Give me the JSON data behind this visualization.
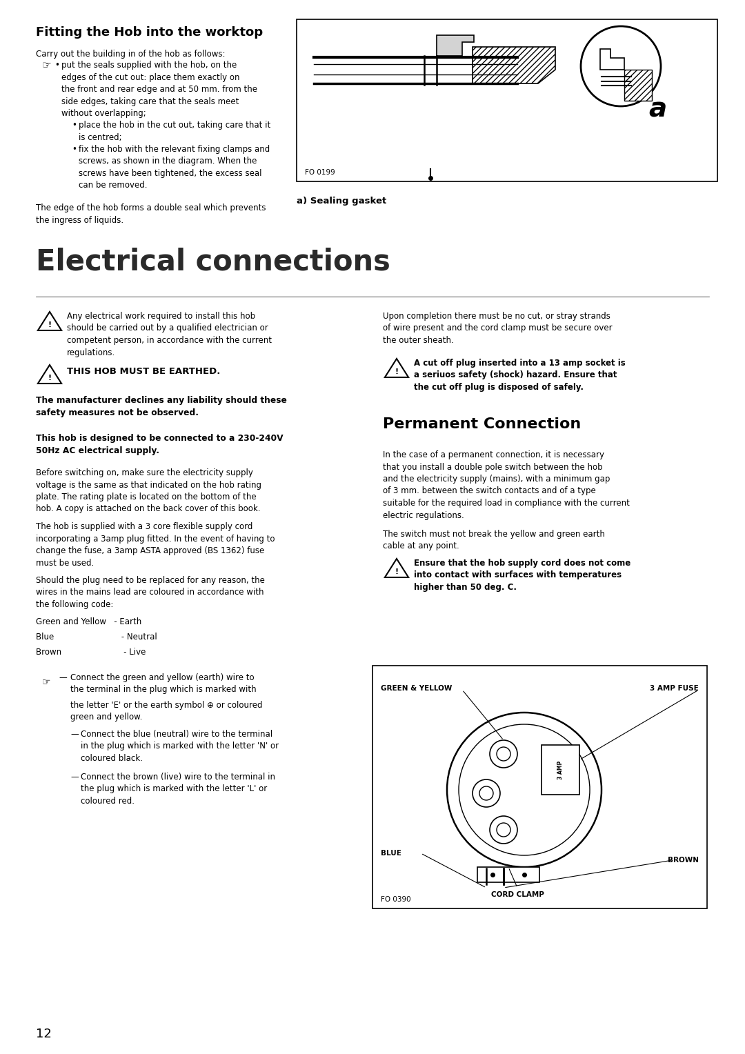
{
  "bg_color": "#ffffff",
  "page_number": "12",
  "section1_title": "Fitting the Hob into the worktop",
  "section1_intro": "Carry out the building in of the hob as follows:",
  "fig1_label": "FO 0199",
  "fig1_caption": "a) Sealing gasket",
  "section2_title": "Electrical connections",
  "warn1": "Any electrical work required to install this hob\nshould be carried out by a qualified electrician or\ncompetent person, in accordance with the current\nregulations.",
  "warn2": "THIS HOB MUST BE EARTHED.",
  "warn3": "The manufacturer declines any liability should these\nsafety measures not be observed.",
  "warn4_bold": "This hob is designed to be connected to a 230-240V\n50Hz AC electrical supply.",
  "para1": "Before switching on, make sure the electricity supply\nvoltage is the same as that indicated on the hob rating\nplate. The rating plate is located on the bottom of the\nhob. A copy is attached on the back cover of this book.",
  "para2": "The hob is supplied with a 3 core flexible supply cord\nincorporating a 3amp plug fitted. In the event of having to\nchange the fuse, a 3amp ASTA approved (BS 1362) fuse\nmust be used.",
  "para3": "Should the plug need to be replaced for any reason, the\nwires in the mains lead are coloured in accordance with\nthe following code:",
  "wire1": "Green and Yellow   - Earth",
  "wire2": "Blue                          - Neutral",
  "wire3": "Brown                        - Live",
  "connect1a": "Connect the green and yellow (earth) wire to",
  "connect1b": "the terminal in the plug which is marked with",
  "connect1c": "the letter 'E' or the earth symbol ⊕ or coloured",
  "connect1d": "green and yellow.",
  "connect2a": "Connect the blue (neutral) wire to the terminal",
  "connect2b": "in the plug which is marked with the letter 'N' or",
  "connect2c": "coloured black.",
  "connect3a": "Connect the brown (live) wire to the terminal in",
  "connect3b": "the plug which is marked with the letter 'L' or",
  "connect3c": "coloured red.",
  "right_warn1": "Upon completion there must be no cut, or stray strands\nof wire present and the cord clamp must be secure over\nthe outer sheath.",
  "right_warn2": "A cut off plug inserted into a 13 amp socket is\na seriuos safety (shock) hazard. Ensure that\nthe cut off plug is disposed of safely.",
  "perm_title": "Permanent Connection",
  "perm_para1": "In the case of a permanent connection, it is necessary\nthat you install a double pole switch between the hob\nand the electricity supply (mains), with a minimum gap\nof 3 mm. between the switch contacts and of a type\nsuitable for the required load in compliance with the current\nelectric regulations.",
  "perm_para2": "The switch must not break the yellow and green earth\ncable at any point.",
  "perm_warn": "Ensure that the hob supply cord does not come\ninto contact with surfaces with temperatures\nhigher than 50 deg. C.",
  "fig2_label": "FO 0390",
  "fig2_green_yellow": "GREEN & YELLOW",
  "fig2_3amp": "3 AMP FUSE",
  "fig2_blue": "BLUE",
  "fig2_brown": "BROWN",
  "fig2_cord": "CORD CLAMP",
  "section1_footer": "The edge of the hob forms a double seal which prevents\nthe ingress of liquids."
}
